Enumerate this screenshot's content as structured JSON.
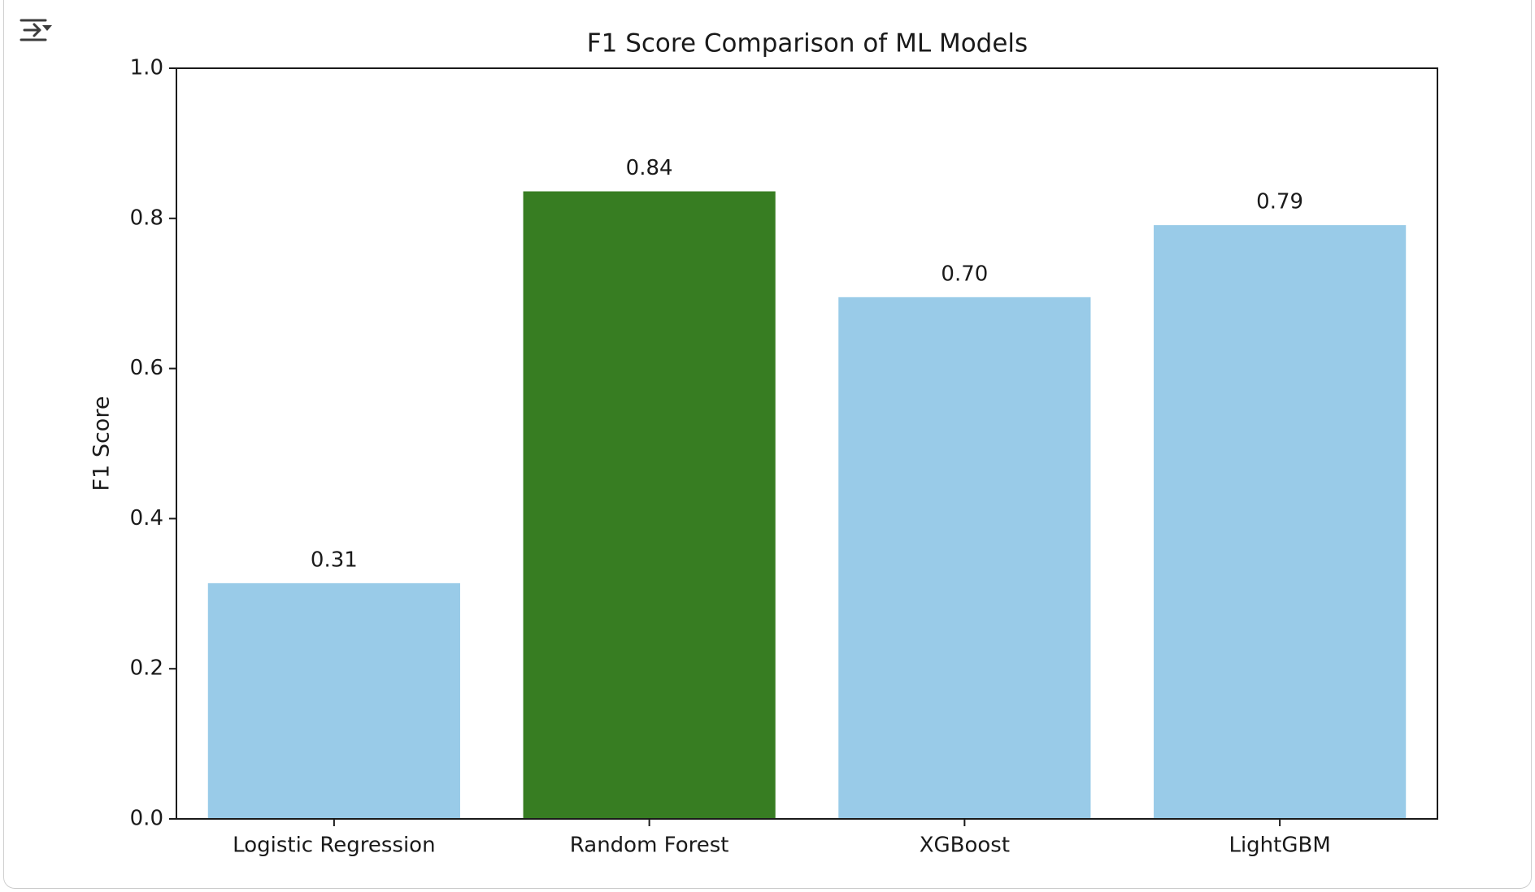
{
  "toolbar": {
    "output_toggle_icon": "output-collapse-icon"
  },
  "chart_data": {
    "type": "bar",
    "title": "F1 Score Comparison of ML Models",
    "xlabel": "",
    "ylabel": "F1 Score",
    "ylim": [
      0,
      1.0
    ],
    "yticks": [
      "0.0",
      "0.2",
      "0.4",
      "0.6",
      "0.8",
      "1.0"
    ],
    "categories": [
      "Logistic Regression",
      "Random Forest",
      "XGBoost",
      "LightGBM"
    ],
    "values": [
      0.314,
      0.836,
      0.695,
      0.791
    ],
    "value_labels": [
      "0.31",
      "0.84",
      "0.70",
      "0.79"
    ],
    "colors": [
      "#99cbe8",
      "#377d22",
      "#99cbe8",
      "#99cbe8"
    ],
    "grid": false,
    "legend": "none"
  }
}
